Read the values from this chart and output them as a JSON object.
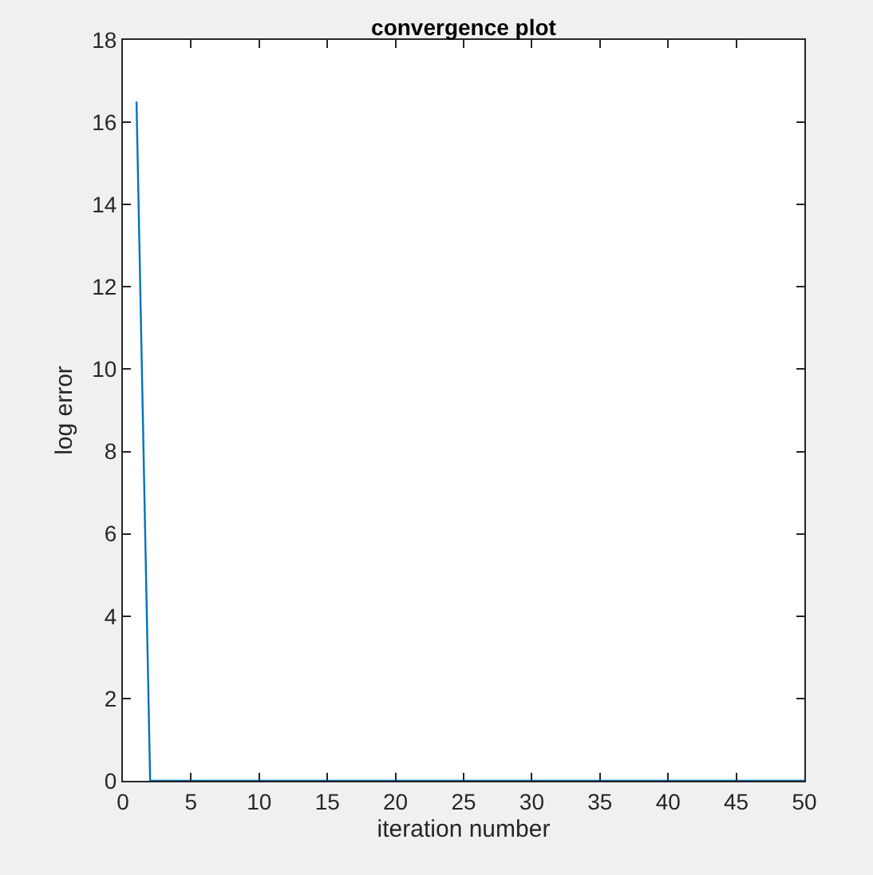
{
  "chart_data": {
    "type": "line",
    "title": "convergence plot",
    "xlabel": "iteration number",
    "ylabel": "log error",
    "x": [
      1,
      2,
      3,
      4,
      5,
      6,
      7,
      8,
      9,
      10,
      11,
      12,
      13,
      14,
      15,
      16,
      17,
      18,
      19,
      20,
      21,
      22,
      23,
      24,
      25,
      26,
      27,
      28,
      29,
      30,
      31,
      32,
      33,
      34,
      35,
      36,
      37,
      38,
      39,
      40,
      41,
      42,
      43,
      44,
      45,
      46,
      47,
      48,
      49,
      50
    ],
    "series": [
      {
        "color": "#0072bd",
        "values": [
          16.5,
          0,
          0,
          0,
          0,
          0,
          0,
          0,
          0,
          0,
          0,
          0,
          0,
          0,
          0,
          0,
          0,
          0,
          0,
          0,
          0,
          0,
          0,
          0,
          0,
          0,
          0,
          0,
          0,
          0,
          0,
          0,
          0,
          0,
          0,
          0,
          0,
          0,
          0,
          0,
          0,
          0,
          0,
          0,
          0,
          0,
          0,
          0,
          0,
          0
        ]
      }
    ],
    "xlim": [
      0,
      50
    ],
    "xticks": [
      0,
      5,
      10,
      15,
      20,
      25,
      30,
      35,
      40,
      45,
      50
    ],
    "ylim": [
      0,
      18
    ],
    "yticks": [
      0,
      2,
      4,
      6,
      8,
      10,
      12,
      14,
      16,
      18
    ],
    "marker": "none",
    "line_style": "solid"
  }
}
